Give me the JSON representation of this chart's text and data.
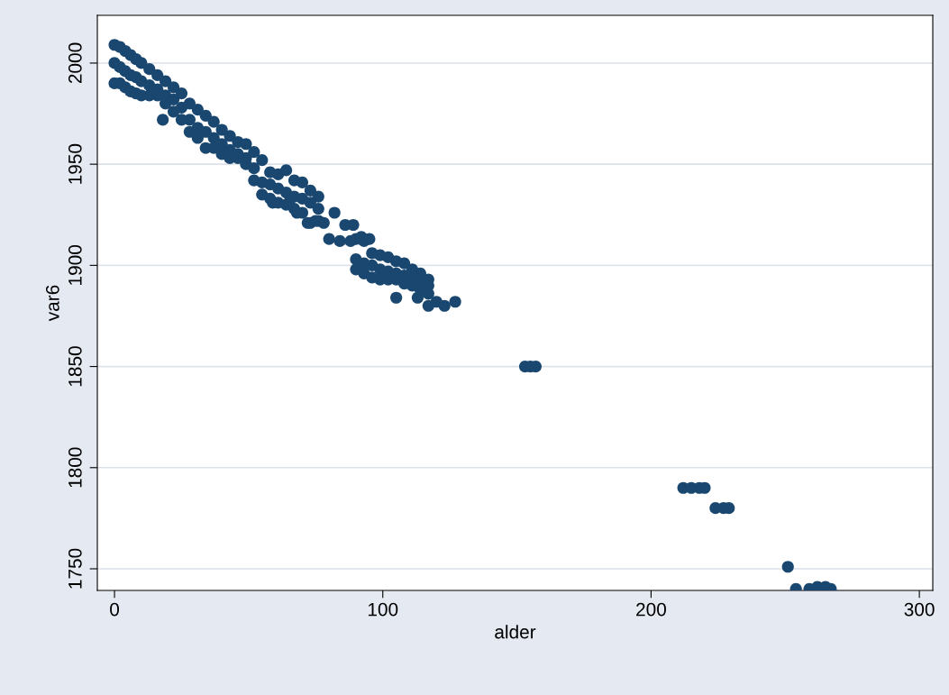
{
  "chart_data": {
    "type": "scatter",
    "xlabel": "alder",
    "ylabel": "var6",
    "x": [
      0,
      0,
      0,
      2,
      2,
      2,
      4,
      4,
      4,
      6,
      6,
      6,
      8,
      8,
      8,
      10,
      10,
      10,
      13,
      13,
      13,
      16,
      16,
      16,
      19,
      19,
      19,
      22,
      22,
      22,
      25,
      25,
      25,
      28,
      28,
      28,
      31,
      31,
      31,
      34,
      34,
      34,
      37,
      37,
      37,
      40,
      40,
      40,
      43,
      43,
      43,
      46,
      46,
      46,
      49,
      49,
      49,
      52,
      52,
      52,
      55,
      55,
      55,
      58,
      58,
      58,
      61,
      61,
      61,
      64,
      64,
      64,
      67,
      67,
      67,
      70,
      70,
      70,
      73,
      73,
      73,
      76,
      76,
      76,
      90,
      90,
      90,
      93,
      93,
      93,
      96,
      96,
      96,
      99,
      99,
      99,
      102,
      102,
      102,
      105,
      105,
      105,
      108,
      108,
      108,
      111,
      111,
      111,
      114,
      114,
      114,
      117,
      117,
      117,
      18,
      105,
      113,
      117,
      120,
      123,
      127,
      80,
      84,
      88,
      78,
      82,
      86,
      89,
      92,
      95,
      65,
      68,
      72,
      75,
      59,
      153,
      155,
      157,
      212,
      215,
      218,
      220,
      224,
      227,
      229,
      251,
      254,
      259,
      262,
      265,
      267
    ],
    "values": [
      2009,
      2000,
      1990,
      2008,
      1998,
      1990,
      2006,
      1996,
      1988,
      2004,
      1994,
      1986,
      2002,
      1993,
      1985,
      2000,
      1991,
      1984,
      1997,
      1989,
      1984,
      1994,
      1987,
      1984,
      1991,
      1984,
      1980,
      1988,
      1982,
      1976,
      1985,
      1978,
      1972,
      1980,
      1972,
      1966,
      1977,
      1968,
      1963,
      1974,
      1966,
      1958,
      1971,
      1963,
      1958,
      1967,
      1960,
      1955,
      1964,
      1957,
      1953,
      1961,
      1955,
      1953,
      1960,
      1953,
      1950,
      1956,
      1948,
      1942,
      1952,
      1941,
      1935,
      1946,
      1940,
      1933,
      1945,
      1938,
      1931,
      1947,
      1936,
      1930,
      1942,
      1934,
      1928,
      1941,
      1933,
      1926,
      1937,
      1931,
      1921,
      1934,
      1928,
      1922,
      1913,
      1903,
      1898,
      1912,
      1901,
      1896,
      1906,
      1900,
      1894,
      1905,
      1898,
      1893,
      1904,
      1897,
      1893,
      1902,
      1896,
      1893,
      1901,
      1895,
      1891,
      1898,
      1893,
      1890,
      1896,
      1892,
      1888,
      1893,
      1890,
      1886,
      1972,
      1884,
      1884,
      1880,
      1882,
      1880,
      1882,
      1913,
      1912,
      1912,
      1921,
      1926,
      1920,
      1920,
      1914,
      1913,
      1931,
      1926,
      1921,
      1922,
      1931,
      1850,
      1850,
      1850,
      1790,
      1790,
      1790,
      1790,
      1780,
      1780,
      1780,
      1751,
      1740,
      1740,
      1741,
      1741,
      1740
    ],
    "color": "#1a476f",
    "marker": "circle",
    "xlim": [
      -6.4,
      305
    ],
    "xticks": [
      0,
      100,
      200,
      300
    ],
    "ylim": [
      1739.3,
      2023.6
    ],
    "yticks": [
      1750,
      1800,
      1850,
      1900,
      1950,
      2000
    ],
    "grid": "y"
  }
}
